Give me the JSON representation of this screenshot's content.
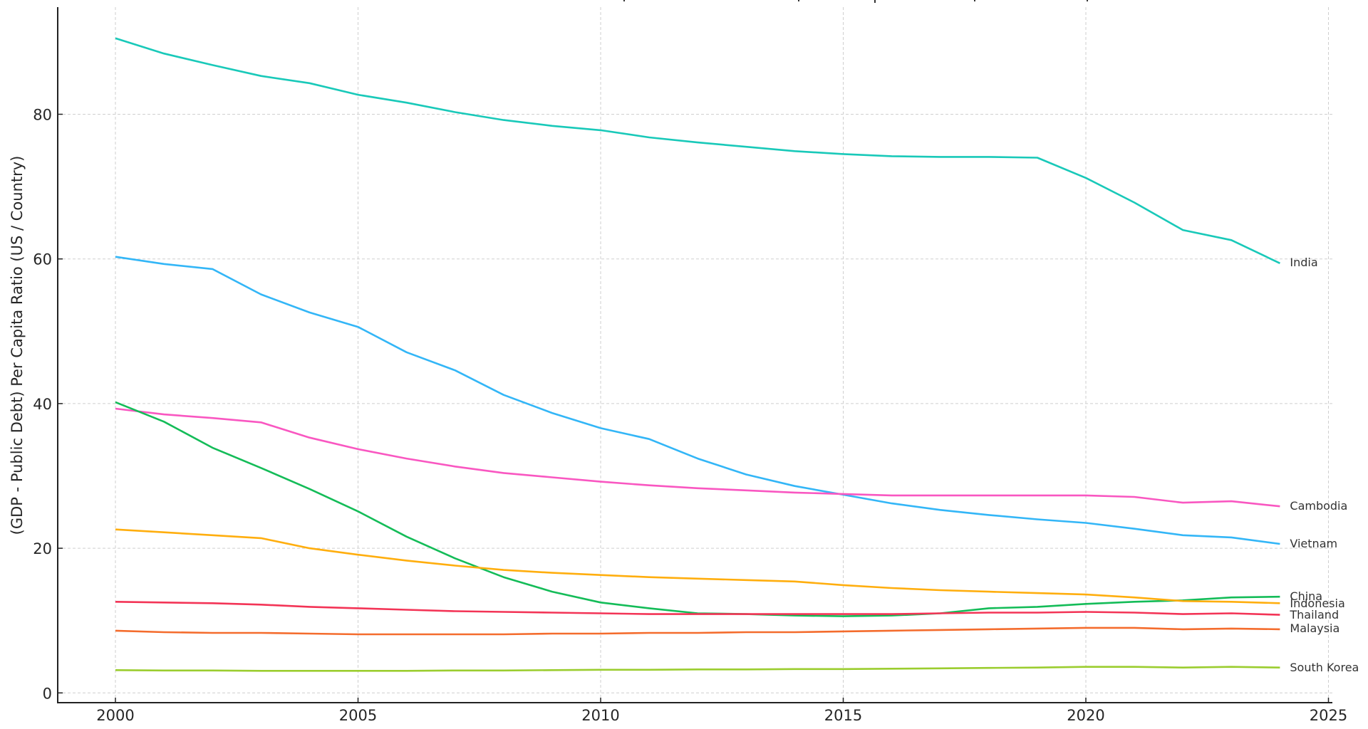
{
  "chart_data": {
    "type": "line",
    "title": "",
    "xlabel": "",
    "ylabel": "(GDP - Public Debt) Per Capita Ratio (US / Country)",
    "xlim": [
      1999,
      2025.2
    ],
    "ylim": [
      -1,
      95
    ],
    "x_ticks": [
      2000,
      2005,
      2010,
      2015,
      2020,
      2025
    ],
    "y_ticks": [
      0,
      20,
      40,
      60,
      80
    ],
    "grid": true,
    "legend": "inline labels at line ends (right)",
    "x": [
      2000,
      2001,
      2002,
      2003,
      2004,
      2005,
      2006,
      2007,
      2008,
      2009,
      2010,
      2011,
      2012,
      2013,
      2014,
      2015,
      2016,
      2017,
      2018,
      2019,
      2020,
      2021,
      2022,
      2023,
      2024
    ],
    "series": [
      {
        "name": "India",
        "color": "#19c9b9",
        "label_dy": 0,
        "values": [
          90.5,
          88.4,
          86.8,
          85.3,
          84.3,
          82.7,
          81.6,
          80.3,
          79.2,
          78.4,
          77.8,
          76.8,
          76.1,
          75.5,
          74.9,
          74.5,
          74.2,
          74.1,
          74.1,
          74.0,
          71.2,
          67.8,
          64.0,
          62.6,
          59.4
        ]
      },
      {
        "name": "Vietnam",
        "color": "#33b6f7",
        "label_dy": 0,
        "values": [
          60.3,
          59.3,
          58.6,
          55.1,
          52.6,
          50.6,
          47.1,
          44.6,
          41.2,
          38.7,
          36.6,
          35.1,
          32.4,
          30.2,
          28.6,
          27.4,
          26.2,
          25.3,
          24.6,
          24.0,
          23.5,
          22.7,
          21.8,
          21.5,
          20.6
        ]
      },
      {
        "name": "Cambodia",
        "color": "#f957c1",
        "label_dy": 0,
        "values": [
          39.3,
          38.5,
          38.0,
          37.4,
          35.3,
          33.7,
          32.4,
          31.3,
          30.4,
          29.8,
          29.2,
          28.7,
          28.3,
          28.0,
          27.7,
          27.5,
          27.3,
          27.3,
          27.3,
          27.3,
          27.3,
          27.1,
          26.3,
          26.5,
          25.8
        ]
      },
      {
        "name": "China",
        "color": "#14bc58",
        "label_dy": 0,
        "values": [
          40.2,
          37.5,
          33.9,
          31.1,
          28.2,
          25.1,
          21.6,
          18.6,
          16.0,
          14.0,
          12.5,
          11.7,
          11.0,
          10.9,
          10.7,
          10.6,
          10.7,
          11.0,
          11.7,
          11.9,
          12.3,
          12.6,
          12.8,
          13.2,
          13.3
        ]
      },
      {
        "name": "Indonesia",
        "color": "#ffae0e",
        "label_dy": 0,
        "values": [
          22.6,
          22.2,
          21.8,
          21.4,
          20.0,
          19.1,
          18.3,
          17.6,
          17.0,
          16.6,
          16.3,
          16.0,
          15.8,
          15.6,
          15.4,
          14.9,
          14.5,
          14.2,
          14.0,
          13.8,
          13.6,
          13.2,
          12.7,
          12.6,
          12.4
        ]
      },
      {
        "name": "Thailand",
        "color": "#f33456",
        "label_dy": 0,
        "values": [
          12.6,
          12.5,
          12.4,
          12.2,
          11.9,
          11.7,
          11.5,
          11.3,
          11.2,
          11.1,
          11.0,
          10.9,
          10.9,
          10.9,
          10.9,
          10.9,
          10.9,
          11.0,
          11.1,
          11.1,
          11.2,
          11.1,
          10.9,
          11.0,
          10.8
        ]
      },
      {
        "name": "Malaysia",
        "color": "#f46c2d",
        "label_dy": 0,
        "values": [
          8.6,
          8.4,
          8.3,
          8.3,
          8.2,
          8.1,
          8.1,
          8.1,
          8.1,
          8.2,
          8.2,
          8.3,
          8.3,
          8.4,
          8.4,
          8.5,
          8.6,
          8.7,
          8.8,
          8.9,
          9.0,
          9.0,
          8.8,
          8.9,
          8.8
        ]
      },
      {
        "name": "South Korea",
        "color": "#9bcd2f",
        "label_dy": 0,
        "values": [
          3.15,
          3.1,
          3.1,
          3.05,
          3.05,
          3.05,
          3.05,
          3.1,
          3.1,
          3.15,
          3.2,
          3.2,
          3.25,
          3.25,
          3.3,
          3.3,
          3.35,
          3.4,
          3.45,
          3.5,
          3.6,
          3.6,
          3.5,
          3.6,
          3.5
        ]
      }
    ]
  }
}
